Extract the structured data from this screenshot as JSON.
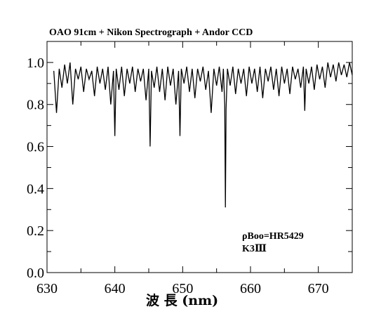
{
  "chart_data": {
    "type": "line",
    "title": "OAO 91cm + Nikon Spectrograph + Andor CCD",
    "xlabel": "波 長 (nm)",
    "ylabel": "",
    "xlim": [
      630,
      675
    ],
    "ylim": [
      0.0,
      1.1
    ],
    "x_ticks": [
      630,
      640,
      650,
      660,
      670
    ],
    "x_tick_labels": [
      "630",
      "640",
      "650",
      "660",
      "670"
    ],
    "y_ticks": [
      0.0,
      0.2,
      0.4,
      0.6,
      0.8,
      1.0
    ],
    "y_tick_labels": [
      "0.0",
      "0.2",
      "0.4",
      "0.6",
      "0.8",
      "1.0"
    ],
    "annotations": [
      "ρBoo=HR5429",
      "K3Ⅲ"
    ],
    "grid": false,
    "legend": "none",
    "series": [
      {
        "color": "#000000",
        "x": [
          631.0,
          631.4,
          631.8,
          632.2,
          632.6,
          633.0,
          633.4,
          633.8,
          634.2,
          634.6,
          635.0,
          635.4,
          635.8,
          636.2,
          636.6,
          637.0,
          637.4,
          637.8,
          638.2,
          638.6,
          639.0,
          639.4,
          639.8,
          640.0,
          640.2,
          640.6,
          641.0,
          641.4,
          641.8,
          642.2,
          642.6,
          643.0,
          643.4,
          643.8,
          644.2,
          644.6,
          645.0,
          645.2,
          645.4,
          645.8,
          646.2,
          646.6,
          647.0,
          647.4,
          647.8,
          648.2,
          648.6,
          649.0,
          649.4,
          649.6,
          649.8,
          650.2,
          650.6,
          651.0,
          651.4,
          651.8,
          652.2,
          652.6,
          653.0,
          653.4,
          653.8,
          654.2,
          654.6,
          655.0,
          655.4,
          655.8,
          656.0,
          656.2,
          656.3,
          656.4,
          656.6,
          657.0,
          657.4,
          657.8,
          658.2,
          658.6,
          659.0,
          659.4,
          659.8,
          660.2,
          660.6,
          661.0,
          661.4,
          661.8,
          662.2,
          662.6,
          663.0,
          663.4,
          663.8,
          664.2,
          664.6,
          665.0,
          665.4,
          665.8,
          666.2,
          666.6,
          667.0,
          667.4,
          667.8,
          668.0,
          668.2,
          668.6,
          669.0,
          669.4,
          669.8,
          670.2,
          670.6,
          671.0,
          671.4,
          671.8,
          672.2,
          672.6,
          673.0,
          673.4,
          673.8,
          674.2,
          674.6,
          675.0
        ],
        "values": [
          0.96,
          0.76,
          0.97,
          0.88,
          0.99,
          0.9,
          1.0,
          0.8,
          0.97,
          0.92,
          0.98,
          0.86,
          0.97,
          0.92,
          0.96,
          0.84,
          0.98,
          0.9,
          0.97,
          0.87,
          0.98,
          0.8,
          0.96,
          0.65,
          0.97,
          0.87,
          0.98,
          0.84,
          0.97,
          0.9,
          0.98,
          0.86,
          0.97,
          0.91,
          0.97,
          0.82,
          0.97,
          0.6,
          0.96,
          0.88,
          0.98,
          0.86,
          0.97,
          0.82,
          0.98,
          0.89,
          0.97,
          0.8,
          0.96,
          0.65,
          0.97,
          0.9,
          0.98,
          0.86,
          0.97,
          0.83,
          0.97,
          0.91,
          0.98,
          0.87,
          0.96,
          0.76,
          0.97,
          0.89,
          0.98,
          0.86,
          0.97,
          0.8,
          0.31,
          0.78,
          0.97,
          0.89,
          0.98,
          0.85,
          0.97,
          0.9,
          0.97,
          0.84,
          0.98,
          0.9,
          0.97,
          0.86,
          0.98,
          0.83,
          0.97,
          0.91,
          0.98,
          0.87,
          0.97,
          0.84,
          0.98,
          0.9,
          0.97,
          0.85,
          0.98,
          0.92,
          0.97,
          0.88,
          0.98,
          0.77,
          0.97,
          0.9,
          0.98,
          0.87,
          0.99,
          0.92,
          0.98,
          0.88,
          1.0,
          0.93,
          0.99,
          0.91,
          1.0,
          0.94,
          0.99,
          0.93,
          1.0,
          0.94
        ]
      }
    ]
  }
}
